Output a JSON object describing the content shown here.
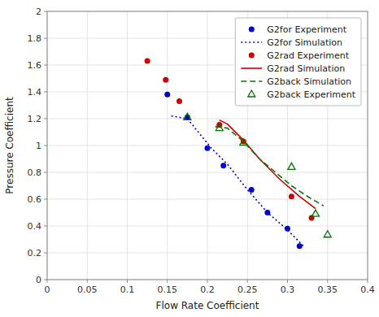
{
  "chart_data": {
    "type": "scatter",
    "xlabel": "Flow Rate Coefficient",
    "ylabel": "Pressure Coefficient",
    "xlim": [
      0,
      0.4
    ],
    "ylim": [
      0,
      2.0
    ],
    "xticks": [
      0,
      0.05,
      0.1,
      0.15,
      0.2,
      0.25,
      0.3,
      0.35,
      0.4
    ],
    "yticks": [
      0,
      0.2,
      0.4,
      0.6,
      0.8,
      1.0,
      1.2,
      1.4,
      1.6,
      1.8,
      2.0
    ],
    "grid": true,
    "legend": "upper right",
    "series": [
      {
        "name": "G2for Experiment",
        "type": "scatter",
        "color": "#0000CD",
        "marker": "circle",
        "x": [
          0.15,
          0.175,
          0.2,
          0.22,
          0.255,
          0.275,
          0.3,
          0.315
        ],
        "values": [
          1.38,
          1.21,
          0.98,
          0.85,
          0.67,
          0.5,
          0.38,
          0.25
        ]
      },
      {
        "name": "G2for Simulation",
        "type": "line",
        "color": "#0000CD",
        "line_style": "dotted",
        "x": [
          0.155,
          0.175,
          0.205,
          0.225,
          0.25,
          0.275,
          0.3,
          0.32
        ],
        "values": [
          1.22,
          1.2,
          0.98,
          0.86,
          0.67,
          0.5,
          0.37,
          0.25
        ]
      },
      {
        "name": "G2rad Experiment",
        "type": "scatter",
        "color": "#CC0000",
        "marker": "circle",
        "x": [
          0.125,
          0.148,
          0.165,
          0.215,
          0.245,
          0.305,
          0.33
        ],
        "values": [
          1.63,
          1.49,
          1.33,
          1.155,
          1.03,
          0.62,
          0.46
        ]
      },
      {
        "name": "G2rad Simulation",
        "type": "line",
        "color": "#CC0000",
        "line_style": "solid",
        "x": [
          0.215,
          0.225,
          0.245,
          0.265,
          0.29,
          0.315,
          0.335
        ],
        "values": [
          1.19,
          1.16,
          1.04,
          0.9,
          0.75,
          0.62,
          0.53
        ]
      },
      {
        "name": "G2back Simulation",
        "type": "line",
        "color": "#007700",
        "line_style": "dashed",
        "x": [
          0.21,
          0.225,
          0.245,
          0.265,
          0.285,
          0.305,
          0.325,
          0.345
        ],
        "values": [
          1.14,
          1.13,
          1.03,
          0.9,
          0.8,
          0.7,
          0.62,
          0.55
        ]
      },
      {
        "name": "G2back Experiment",
        "type": "scatter",
        "color": "#007700",
        "marker": "triangle-open",
        "x": [
          0.175,
          0.215,
          0.245,
          0.305,
          0.335,
          0.35
        ],
        "values": [
          1.21,
          1.13,
          1.02,
          0.84,
          0.49,
          0.335
        ]
      }
    ]
  }
}
